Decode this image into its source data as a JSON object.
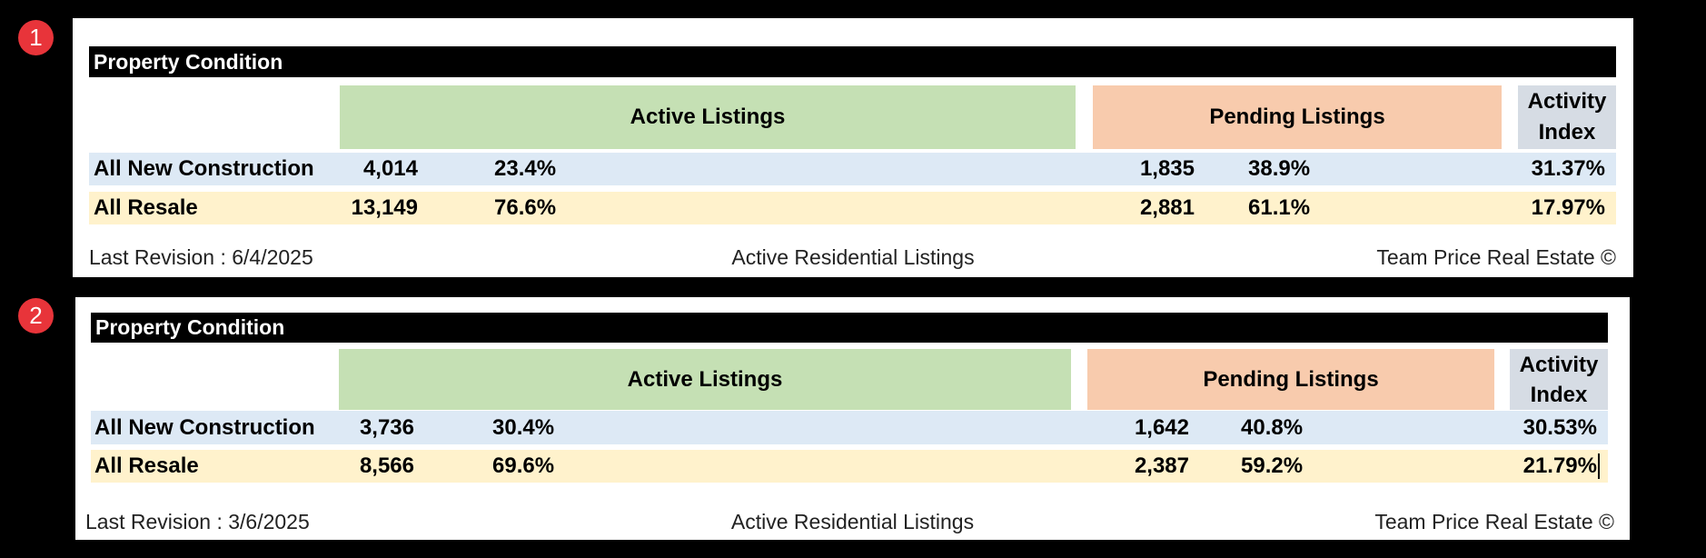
{
  "reports": [
    {
      "badge": "1",
      "title": "Property Condition",
      "headers": {
        "active": "Active Listings",
        "pending": "Pending Listings",
        "index": "Activity\nIndex"
      },
      "rows": [
        {
          "label": "All New Construction",
          "active_count": "4,014",
          "active_pct": "23.4%",
          "pending_count": "1,835",
          "pending_pct": "38.9%",
          "index": "31.37%"
        },
        {
          "label": "All Resale",
          "active_count": "13,149",
          "active_pct": "76.6%",
          "pending_count": "2,881",
          "pending_pct": "61.1%",
          "index": "17.97%"
        }
      ],
      "footer": {
        "revision": "Last Revision : 6/4/2025",
        "center": "Active Residential Listings",
        "brand": "Team Price Real Estate ©"
      }
    },
    {
      "badge": "2",
      "title": "Property Condition",
      "headers": {
        "active": "Active Listings",
        "pending": "Pending Listings",
        "index": "Activity\nIndex"
      },
      "rows": [
        {
          "label": "All New Construction",
          "active_count": "3,736",
          "active_pct": "30.4%",
          "pending_count": "1,642",
          "pending_pct": "40.8%",
          "index": "30.53%"
        },
        {
          "label": "All Resale",
          "active_count": "8,566",
          "active_pct": "69.6%",
          "pending_count": "2,387",
          "pending_pct": "59.2%",
          "index": "21.79%"
        }
      ],
      "footer": {
        "revision": "Last Revision : 3/6/2025",
        "center": "Active Residential Listings",
        "brand": "Team Price Real Estate ©"
      }
    }
  ],
  "colors": {
    "active_header": "#c5e0b4",
    "pending_header": "#f8cbad",
    "index_header": "#d6dce4",
    "new_construction_row": "#dde9f5",
    "resale_row": "#fff2cc",
    "badge": "#e8343a"
  }
}
